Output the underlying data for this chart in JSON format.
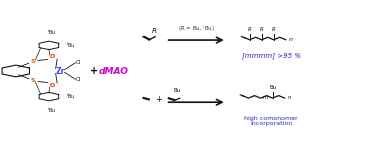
{
  "bg_color": "#ffffff",
  "figsize": [
    3.78,
    1.42
  ],
  "dpi": 100,
  "dMAO_color": "#cc00cc",
  "dMAO_text": "dMAO",
  "mmmm_text": "[mmmm] >95 %",
  "mmmm_color": "#2222cc",
  "comonomer_text": "high comonomer\nincorporation",
  "comonomer_color": "#2222cc",
  "black": "#111111",
  "orange": "#dd6600",
  "blue_zr": "#4444ff",
  "red_o": "#ff2200",
  "dark_gray": "#333333"
}
